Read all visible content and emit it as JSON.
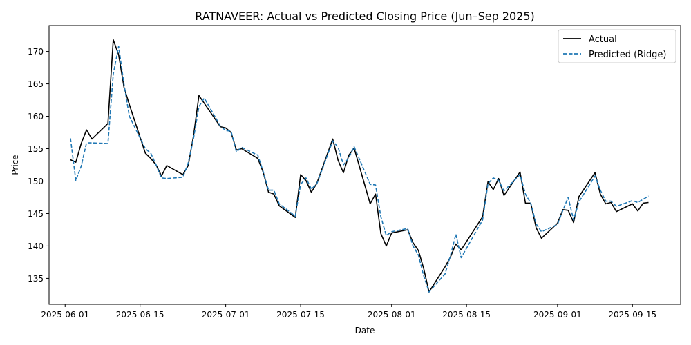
{
  "chart_data": {
    "type": "line",
    "title": "RATNAVEER: Actual vs Predicted Closing Price (Jun–Sep 2025)",
    "xlabel": "Date",
    "ylabel": "Price",
    "xlim": [
      "2025-05-29",
      "2025-09-24"
    ],
    "ylim": [
      131,
      174
    ],
    "x_ticks": [
      "2025-06-01",
      "2025-06-15",
      "2025-07-01",
      "2025-07-15",
      "2025-08-01",
      "2025-08-15",
      "2025-09-01",
      "2025-09-15"
    ],
    "y_ticks": [
      135,
      140,
      145,
      150,
      155,
      160,
      165,
      170
    ],
    "legend_position": "top-right",
    "grid": false,
    "series": [
      {
        "name": "Actual",
        "color": "#000000",
        "style": "solid",
        "points": [
          [
            "2025-06-02",
            153.3
          ],
          [
            "2025-06-03",
            152.9
          ],
          [
            "2025-06-04",
            155.8
          ],
          [
            "2025-06-05",
            157.9
          ],
          [
            "2025-06-06",
            156.5
          ],
          [
            "2025-06-09",
            158.9
          ],
          [
            "2025-06-10",
            171.8
          ],
          [
            "2025-06-11",
            169.5
          ],
          [
            "2025-06-12",
            164.5
          ],
          [
            "2025-06-13",
            161.8
          ],
          [
            "2025-06-16",
            154.3
          ],
          [
            "2025-06-17",
            153.5
          ],
          [
            "2025-06-18",
            152.5
          ],
          [
            "2025-06-19",
            150.8
          ],
          [
            "2025-06-20",
            152.4
          ],
          [
            "2025-06-23",
            151.0
          ],
          [
            "2025-06-24",
            152.4
          ],
          [
            "2025-06-25",
            157.0
          ],
          [
            "2025-06-26",
            163.2
          ],
          [
            "2025-06-27",
            162.0
          ],
          [
            "2025-06-30",
            158.4
          ],
          [
            "2025-07-01",
            158.2
          ],
          [
            "2025-07-02",
            157.5
          ],
          [
            "2025-07-03",
            154.8
          ],
          [
            "2025-07-04",
            155.0
          ],
          [
            "2025-07-07",
            153.5
          ],
          [
            "2025-07-08",
            151.4
          ],
          [
            "2025-07-09",
            148.3
          ],
          [
            "2025-07-10",
            148.0
          ],
          [
            "2025-07-11",
            146.2
          ],
          [
            "2025-07-14",
            144.4
          ],
          [
            "2025-07-15",
            151.0
          ],
          [
            "2025-07-16",
            150.1
          ],
          [
            "2025-07-17",
            148.3
          ],
          [
            "2025-07-18",
            149.6
          ],
          [
            "2025-07-21",
            156.5
          ],
          [
            "2025-07-22",
            153.2
          ],
          [
            "2025-07-23",
            151.3
          ],
          [
            "2025-07-24",
            154.0
          ],
          [
            "2025-07-25",
            155.1
          ],
          [
            "2025-07-28",
            146.5
          ],
          [
            "2025-07-29",
            148.0
          ],
          [
            "2025-07-30",
            141.9
          ],
          [
            "2025-07-31",
            140.0
          ],
          [
            "2025-08-01",
            142.0
          ],
          [
            "2025-08-04",
            142.5
          ],
          [
            "2025-08-05",
            140.5
          ],
          [
            "2025-08-06",
            139.3
          ],
          [
            "2025-08-07",
            136.5
          ],
          [
            "2025-08-08",
            132.9
          ],
          [
            "2025-08-11",
            136.8
          ],
          [
            "2025-08-12",
            138.3
          ],
          [
            "2025-08-13",
            140.3
          ],
          [
            "2025-08-14",
            139.4
          ],
          [
            "2025-08-18",
            144.5
          ],
          [
            "2025-08-19",
            149.9
          ],
          [
            "2025-08-20",
            148.7
          ],
          [
            "2025-08-21",
            150.4
          ],
          [
            "2025-08-22",
            147.8
          ],
          [
            "2025-08-25",
            151.4
          ],
          [
            "2025-08-26",
            146.6
          ],
          [
            "2025-08-27",
            146.6
          ],
          [
            "2025-08-28",
            142.8
          ],
          [
            "2025-08-29",
            141.2
          ],
          [
            "2025-09-01",
            143.5
          ],
          [
            "2025-09-02",
            145.6
          ],
          [
            "2025-09-03",
            145.5
          ],
          [
            "2025-09-04",
            143.6
          ],
          [
            "2025-09-05",
            147.6
          ],
          [
            "2025-09-08",
            151.3
          ],
          [
            "2025-09-09",
            148.0
          ],
          [
            "2025-09-10",
            146.5
          ],
          [
            "2025-09-11",
            146.7
          ],
          [
            "2025-09-12",
            145.3
          ],
          [
            "2025-09-15",
            146.5
          ],
          [
            "2025-09-16",
            145.4
          ],
          [
            "2025-09-17",
            146.6
          ],
          [
            "2025-09-18",
            146.7
          ]
        ]
      },
      {
        "name": "Predicted (Ridge)",
        "color": "#1f77b4",
        "style": "dashed",
        "points": [
          [
            "2025-06-02",
            156.6
          ],
          [
            "2025-06-03",
            150.1
          ],
          [
            "2025-06-04",
            152.3
          ],
          [
            "2025-06-05",
            155.9
          ],
          [
            "2025-06-06",
            155.9
          ],
          [
            "2025-06-09",
            155.8
          ],
          [
            "2025-06-10",
            166.5
          ],
          [
            "2025-06-11",
            170.8
          ],
          [
            "2025-06-12",
            165.0
          ],
          [
            "2025-06-13",
            160.0
          ],
          [
            "2025-06-16",
            155.0
          ],
          [
            "2025-06-17",
            154.3
          ],
          [
            "2025-06-18",
            152.5
          ],
          [
            "2025-06-19",
            150.5
          ],
          [
            "2025-06-20",
            150.4
          ],
          [
            "2025-06-23",
            150.6
          ],
          [
            "2025-06-24",
            152.8
          ],
          [
            "2025-06-25",
            156.6
          ],
          [
            "2025-06-26",
            161.5
          ],
          [
            "2025-06-27",
            162.8
          ],
          [
            "2025-06-30",
            158.5
          ],
          [
            "2025-07-01",
            157.8
          ],
          [
            "2025-07-02",
            157.7
          ],
          [
            "2025-07-03",
            154.5
          ],
          [
            "2025-07-04",
            155.2
          ],
          [
            "2025-07-07",
            154.0
          ],
          [
            "2025-07-08",
            151.5
          ],
          [
            "2025-07-09",
            148.6
          ],
          [
            "2025-07-10",
            148.6
          ],
          [
            "2025-07-11",
            146.5
          ],
          [
            "2025-07-14",
            144.6
          ],
          [
            "2025-07-15",
            149.5
          ],
          [
            "2025-07-16",
            150.5
          ],
          [
            "2025-07-17",
            148.8
          ],
          [
            "2025-07-18",
            149.5
          ],
          [
            "2025-07-21",
            156.2
          ],
          [
            "2025-07-22",
            155.2
          ],
          [
            "2025-07-23",
            152.5
          ],
          [
            "2025-07-24",
            153.6
          ],
          [
            "2025-07-25",
            155.3
          ],
          [
            "2025-07-28",
            149.5
          ],
          [
            "2025-07-29",
            149.4
          ],
          [
            "2025-07-30",
            144.5
          ],
          [
            "2025-07-31",
            141.6
          ],
          [
            "2025-08-01",
            142.2
          ],
          [
            "2025-08-04",
            142.7
          ],
          [
            "2025-08-05",
            140.0
          ],
          [
            "2025-08-06",
            138.6
          ],
          [
            "2025-08-07",
            135.4
          ],
          [
            "2025-08-08",
            132.9
          ],
          [
            "2025-08-11",
            135.7
          ],
          [
            "2025-08-12",
            138.5
          ],
          [
            "2025-08-13",
            141.8
          ],
          [
            "2025-08-14",
            138.2
          ],
          [
            "2025-08-18",
            144.0
          ],
          [
            "2025-08-19",
            149.6
          ],
          [
            "2025-08-20",
            150.5
          ],
          [
            "2025-08-21",
            150.1
          ],
          [
            "2025-08-22",
            148.5
          ],
          [
            "2025-08-25",
            151.0
          ],
          [
            "2025-08-26",
            148.0
          ],
          [
            "2025-08-27",
            146.6
          ],
          [
            "2025-08-28",
            143.4
          ],
          [
            "2025-08-29",
            142.2
          ],
          [
            "2025-09-01",
            143.3
          ],
          [
            "2025-09-02",
            145.5
          ],
          [
            "2025-09-03",
            147.5
          ],
          [
            "2025-09-04",
            144.0
          ],
          [
            "2025-09-05",
            146.8
          ],
          [
            "2025-09-08",
            150.8
          ],
          [
            "2025-09-09",
            148.6
          ],
          [
            "2025-09-10",
            146.9
          ],
          [
            "2025-09-11",
            146.9
          ],
          [
            "2025-09-12",
            146.1
          ],
          [
            "2025-09-15",
            147.0
          ],
          [
            "2025-09-16",
            146.7
          ],
          [
            "2025-09-17",
            147.2
          ],
          [
            "2025-09-18",
            147.7
          ]
        ]
      }
    ]
  }
}
